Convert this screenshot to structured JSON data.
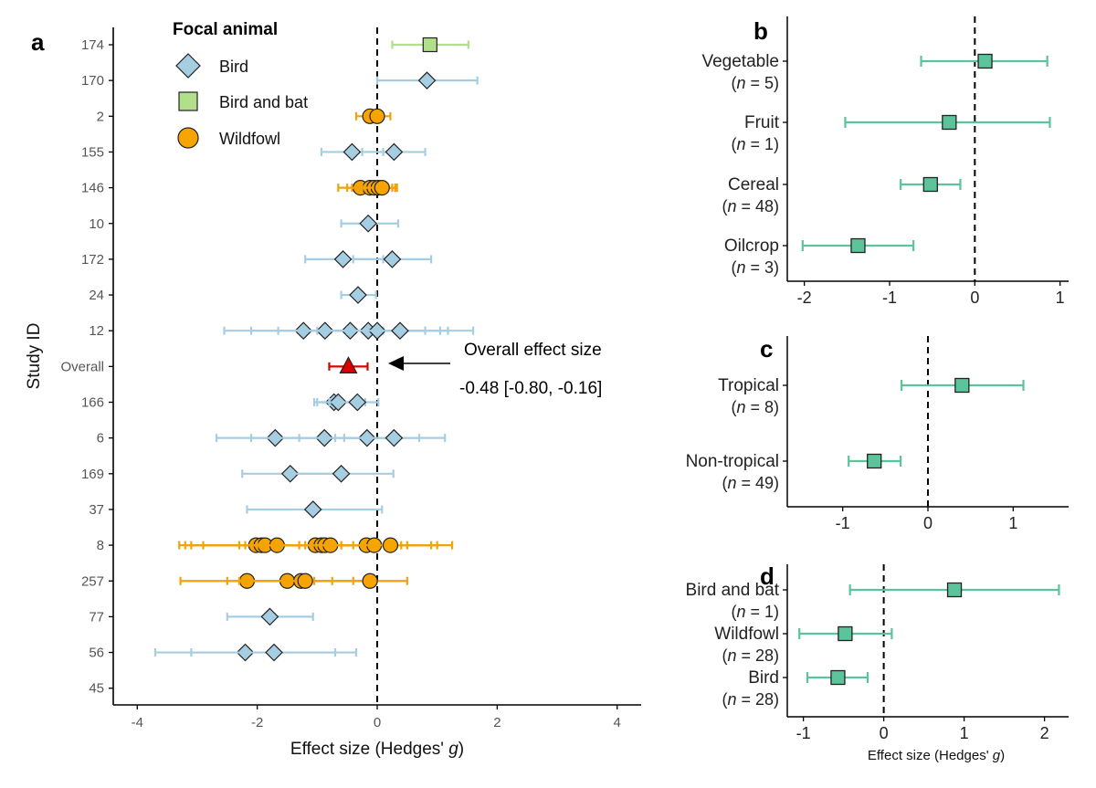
{
  "panel_letters": {
    "a": "a",
    "b": "b",
    "c": "c",
    "d": "d"
  },
  "legend": {
    "title": "Focal animal",
    "items": [
      {
        "label": "Bird",
        "shape": "diamond",
        "fill": "#a6cee3"
      },
      {
        "label": "Bird and bat",
        "shape": "square",
        "fill": "#b2df8a"
      },
      {
        "label": "Wildfowl",
        "shape": "circle",
        "fill": "#f7a400"
      }
    ]
  },
  "annotation": {
    "line1": "Overall effect size",
    "line2": "-0.48 [-0.80, -0.16]"
  },
  "colors": {
    "bird_fill": "#a6cee3",
    "bird_line": "#a6cee3",
    "bat_fill": "#b2df8a",
    "bat_line": "#b2df8a",
    "wildfowl_fill": "#f7a400",
    "wildfowl_line": "#f2a20a",
    "overall": "#dd0000",
    "panel_fill": "#5cc39a",
    "panel_line": "#5cc39a"
  },
  "chart_data": [
    {
      "id": "a",
      "type": "scatter",
      "subtype": "forest",
      "xlabel_text": "Effect size (Hedges' ",
      "xlabel_italic": "g",
      "xlabel_close": ")",
      "ylabel": "Study ID",
      "xlim": [
        -4.4,
        4.4
      ],
      "xticks": [
        -4,
        -2,
        0,
        2,
        4
      ],
      "xtick_labels": [
        "-4",
        "-2",
        "0",
        "2",
        "4"
      ],
      "reference_line": 0,
      "rows": [
        "174",
        "170",
        "2",
        "155",
        "146",
        "10",
        "172",
        "24",
        "12",
        "Overall",
        "166",
        "6",
        "169",
        "37",
        "8",
        "257",
        "77",
        "56",
        "45"
      ],
      "points": [
        {
          "row": "174",
          "group": "Bird and bat",
          "est": 0.88,
          "lo": 0.25,
          "hi": 1.52
        },
        {
          "row": "170",
          "group": "Bird",
          "est": 0.83,
          "lo": 0.0,
          "hi": 1.67
        },
        {
          "row": "2",
          "group": "Wildfowl",
          "est": -0.12,
          "lo": -0.35,
          "hi": 0.1
        },
        {
          "row": "2",
          "group": "Wildfowl",
          "est": 0.0,
          "lo": -0.2,
          "hi": 0.22
        },
        {
          "row": "155",
          "group": "Bird",
          "est": -0.42,
          "lo": -0.93,
          "hi": 0.1
        },
        {
          "row": "155",
          "group": "Bird",
          "est": 0.28,
          "lo": -0.25,
          "hi": 0.8
        },
        {
          "row": "146",
          "group": "Wildfowl",
          "est": -0.28,
          "lo": -0.65,
          "hi": 0.1
        },
        {
          "row": "146",
          "group": "Wildfowl",
          "est": -0.12,
          "lo": -0.5,
          "hi": 0.25
        },
        {
          "row": "146",
          "group": "Wildfowl",
          "est": -0.05,
          "lo": -0.42,
          "hi": 0.3
        },
        {
          "row": "146",
          "group": "Wildfowl",
          "est": 0.02,
          "lo": -0.35,
          "hi": 0.32
        },
        {
          "row": "146",
          "group": "Wildfowl",
          "est": 0.08,
          "lo": -0.25,
          "hi": 0.33
        },
        {
          "row": "10",
          "group": "Bird",
          "est": -0.15,
          "lo": -0.6,
          "hi": 0.35
        },
        {
          "row": "172",
          "group": "Bird",
          "est": -0.57,
          "lo": -1.2,
          "hi": 0.1
        },
        {
          "row": "172",
          "group": "Bird",
          "est": 0.25,
          "lo": -0.4,
          "hi": 0.9
        },
        {
          "row": "24",
          "group": "Bird",
          "est": -0.32,
          "lo": -0.6,
          "hi": -0.02
        },
        {
          "row": "12",
          "group": "Bird",
          "est": -1.23,
          "lo": -2.55,
          "hi": 0.1
        },
        {
          "row": "12",
          "group": "Bird",
          "est": -0.87,
          "lo": -2.1,
          "hi": 0.3
        },
        {
          "row": "12",
          "group": "Bird",
          "est": -0.45,
          "lo": -1.65,
          "hi": 0.8
        },
        {
          "row": "12",
          "group": "Bird",
          "est": -0.15,
          "lo": -1.2,
          "hi": 1.05
        },
        {
          "row": "12",
          "group": "Bird",
          "est": 0.0,
          "lo": -1.0,
          "hi": 1.18
        },
        {
          "row": "12",
          "group": "Bird",
          "est": 0.38,
          "lo": -0.5,
          "hi": 1.6
        },
        {
          "row": "Overall",
          "group": "Overall",
          "est": -0.48,
          "lo": -0.8,
          "hi": -0.16
        },
        {
          "row": "166",
          "group": "Bird",
          "est": -0.72,
          "lo": -1.05,
          "hi": -0.35
        },
        {
          "row": "166",
          "group": "Bird",
          "est": -0.65,
          "lo": -1.0,
          "hi": -0.2
        },
        {
          "row": "166",
          "group": "Bird",
          "est": -0.33,
          "lo": -0.8,
          "hi": 0.02
        },
        {
          "row": "6",
          "group": "Bird",
          "est": -1.7,
          "lo": -2.68,
          "hi": -0.7
        },
        {
          "row": "6",
          "group": "Bird",
          "est": -0.88,
          "lo": -2.1,
          "hi": 0.35
        },
        {
          "row": "6",
          "group": "Bird",
          "est": -0.17,
          "lo": -1.3,
          "hi": 0.7
        },
        {
          "row": "6",
          "group": "Bird",
          "est": 0.28,
          "lo": -0.55,
          "hi": 1.13
        },
        {
          "row": "169",
          "group": "Bird",
          "est": -1.45,
          "lo": -2.25,
          "hi": -0.6
        },
        {
          "row": "169",
          "group": "Bird",
          "est": -0.6,
          "lo": -1.4,
          "hi": 0.27
        },
        {
          "row": "37",
          "group": "Bird",
          "est": -1.07,
          "lo": -2.17,
          "hi": 0.08
        },
        {
          "row": "8",
          "group": "Wildfowl",
          "est": -2.02,
          "lo": -3.3,
          "hi": -0.7
        },
        {
          "row": "8",
          "group": "Wildfowl",
          "est": -1.93,
          "lo": -3.2,
          "hi": -0.6
        },
        {
          "row": "8",
          "group": "Wildfowl",
          "est": -1.87,
          "lo": -3.1,
          "hi": -0.6
        },
        {
          "row": "8",
          "group": "Wildfowl",
          "est": -1.67,
          "lo": -2.9,
          "hi": -0.4
        },
        {
          "row": "8",
          "group": "Wildfowl",
          "est": -1.03,
          "lo": -2.3,
          "hi": 0.2
        },
        {
          "row": "8",
          "group": "Wildfowl",
          "est": -0.93,
          "lo": -2.2,
          "hi": 0.3
        },
        {
          "row": "8",
          "group": "Wildfowl",
          "est": -0.87,
          "lo": -2.0,
          "hi": 0.5
        },
        {
          "row": "8",
          "group": "Wildfowl",
          "est": -0.78,
          "lo": -1.9,
          "hi": 0.4
        },
        {
          "row": "8",
          "group": "Wildfowl",
          "est": -0.18,
          "lo": -1.3,
          "hi": 0.9
        },
        {
          "row": "8",
          "group": "Wildfowl",
          "est": -0.05,
          "lo": -1.2,
          "hi": 1.0
        },
        {
          "row": "8",
          "group": "Wildfowl",
          "est": 0.22,
          "lo": -0.8,
          "hi": 1.25
        },
        {
          "row": "257",
          "group": "Wildfowl",
          "est": -2.17,
          "lo": -3.28,
          "hi": -1.05
        },
        {
          "row": "257",
          "group": "Wildfowl",
          "est": -1.5,
          "lo": -2.5,
          "hi": -0.4
        },
        {
          "row": "257",
          "group": "Wildfowl",
          "est": -1.27,
          "lo": -2.3,
          "hi": -0.2
        },
        {
          "row": "257",
          "group": "Wildfowl",
          "est": -1.2,
          "lo": -2.2,
          "hi": -0.2
        },
        {
          "row": "257",
          "group": "Wildfowl",
          "est": -0.12,
          "lo": -0.75,
          "hi": 0.5
        },
        {
          "row": "77",
          "group": "Bird",
          "est": -1.79,
          "lo": -2.5,
          "hi": -1.07
        },
        {
          "row": "56",
          "group": "Bird",
          "est": -2.2,
          "lo": -3.7,
          "hi": -0.7
        },
        {
          "row": "56",
          "group": "Bird",
          "est": -1.72,
          "lo": -3.1,
          "hi": -0.35
        }
      ]
    },
    {
      "id": "b",
      "type": "scatter",
      "subtype": "forest",
      "xlim": [
        -2.2,
        1.1
      ],
      "xticks": [
        -2,
        -1,
        0,
        1
      ],
      "xtick_labels": [
        "-2",
        "-1",
        "0",
        "1"
      ],
      "reference_line": 0,
      "categories": [
        {
          "label": "Vegetable",
          "n_prefix": "(",
          "n_var": "n",
          "n_suffix": " = 5)",
          "est": 0.12,
          "lo": -0.63,
          "hi": 0.85
        },
        {
          "label": "Fruit",
          "n_prefix": "(",
          "n_var": "n",
          "n_suffix": " = 1)",
          "est": -0.3,
          "lo": -1.52,
          "hi": 0.88
        },
        {
          "label": "Cereal",
          "n_prefix": "(",
          "n_var": "n",
          "n_suffix": " = 48)",
          "est": -0.52,
          "lo": -0.87,
          "hi": -0.17
        },
        {
          "label": "Oilcrop",
          "n_prefix": "(",
          "n_var": "n",
          "n_suffix": " = 3)",
          "est": -1.37,
          "lo": -2.02,
          "hi": -0.72
        }
      ]
    },
    {
      "id": "c",
      "type": "scatter",
      "subtype": "forest",
      "xlim": [
        -1.65,
        1.65
      ],
      "xticks": [
        -1,
        0,
        1
      ],
      "xtick_labels": [
        "-1",
        "0",
        "1"
      ],
      "reference_line": 0,
      "categories": [
        {
          "label": "Tropical",
          "n_prefix": "(",
          "n_var": "n",
          "n_suffix": " = 8)",
          "est": 0.4,
          "lo": -0.31,
          "hi": 1.12
        },
        {
          "label": "Non-tropical",
          "n_prefix": "(",
          "n_var": "n",
          "n_suffix": " = 49)",
          "est": -0.63,
          "lo": -0.93,
          "hi": -0.32
        }
      ]
    },
    {
      "id": "d",
      "type": "scatter",
      "subtype": "forest",
      "xlim": [
        -1.2,
        2.3
      ],
      "xticks": [
        -1,
        0,
        1,
        2
      ],
      "xtick_labels": [
        "-1",
        "0",
        "1",
        "2"
      ],
      "reference_line": 0,
      "xlabel_text": "Effect size (Hedges' ",
      "xlabel_italic": "g",
      "xlabel_close": ")",
      "categories": [
        {
          "label": "Bird and bat",
          "n_prefix": "(",
          "n_var": "n",
          "n_suffix": " = 1)",
          "est": 0.88,
          "lo": -0.42,
          "hi": 2.18
        },
        {
          "label": "Wildfowl",
          "n_prefix": "(",
          "n_var": "n",
          "n_suffix": " = 28)",
          "est": -0.48,
          "lo": -1.05,
          "hi": 0.1
        },
        {
          "label": "Bird",
          "n_prefix": "(",
          "n_var": "n",
          "n_suffix": " = 28)",
          "est": -0.57,
          "lo": -0.95,
          "hi": -0.2
        }
      ]
    }
  ]
}
